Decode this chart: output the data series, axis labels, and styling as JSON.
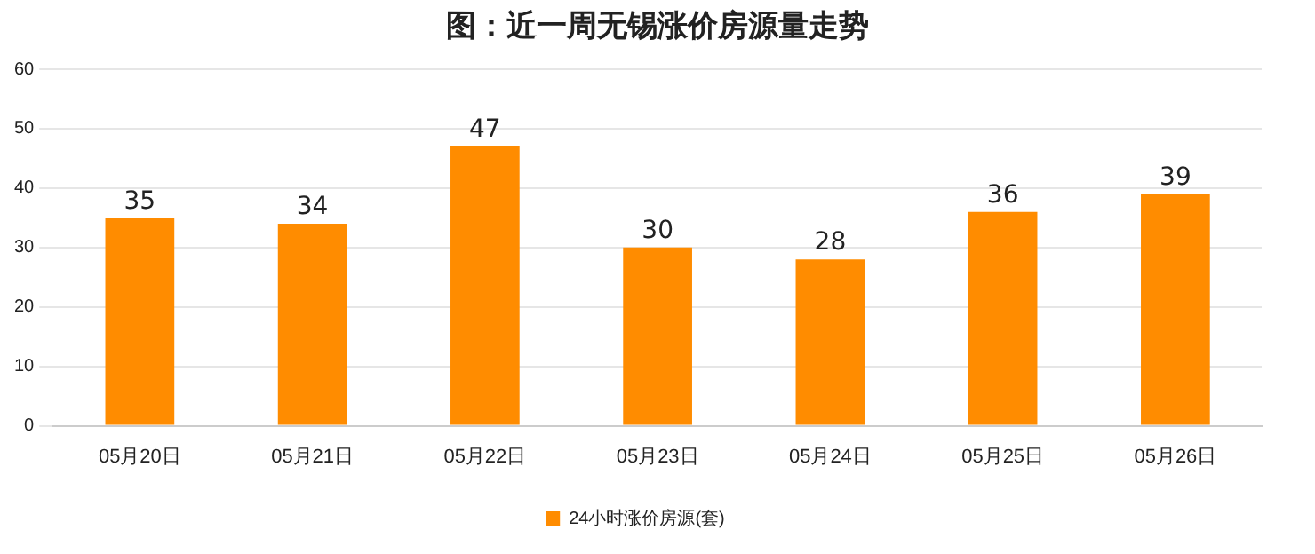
{
  "chart_data": {
    "type": "bar",
    "title": "图：近一周无锡涨价房源量走势",
    "categories": [
      "05月20日",
      "05月21日",
      "05月22日",
      "05月23日",
      "05月24日",
      "05月25日",
      "05月26日"
    ],
    "series": [
      {
        "name": "24小时涨价房源(套)",
        "color": "#ff8c00",
        "values": [
          35,
          34,
          47,
          30,
          28,
          36,
          39
        ]
      }
    ],
    "ylim": [
      0,
      60
    ],
    "yticks": [
      0,
      10,
      20,
      30,
      40,
      50,
      60
    ],
    "grid": "y",
    "legend": "bottom",
    "data_labels": true
  }
}
